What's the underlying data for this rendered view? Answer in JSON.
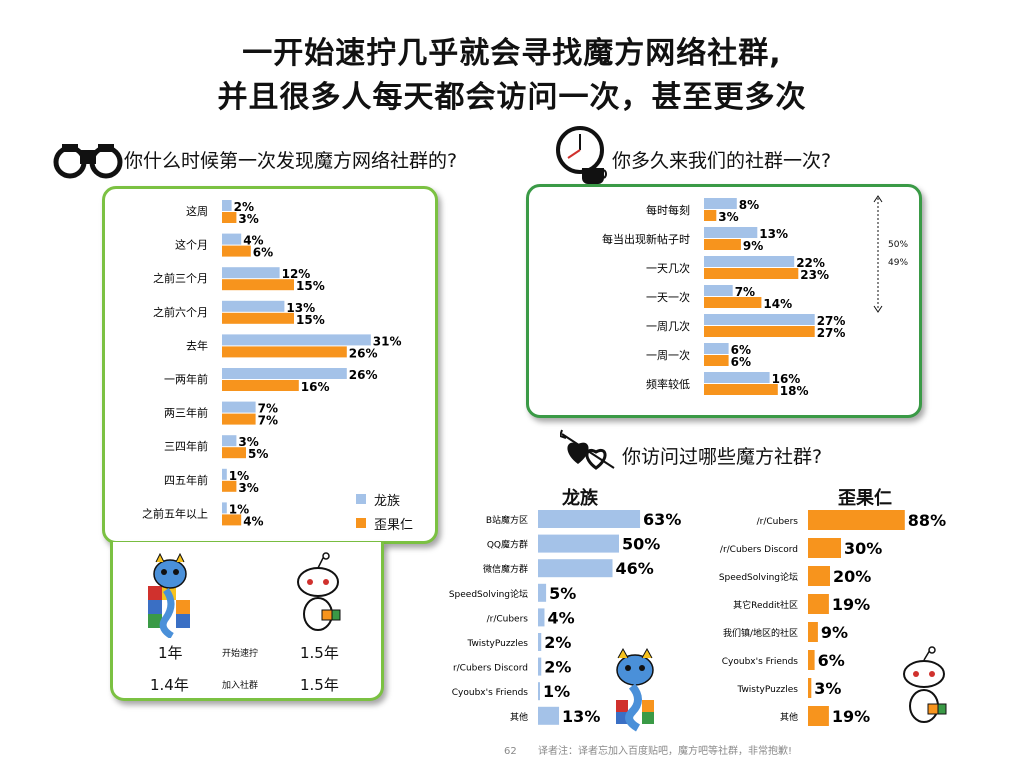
{
  "title_line1": "一开始速拧几乎就会寻找魔方网络社群,",
  "title_line2": "并且很多人每天都会访问一次，甚至更多次",
  "q1": "你什么时候第一次发现魔方网络社群的?",
  "q2": "你多久来我们的社群一次?",
  "q3": "你访问过哪些魔方社群?",
  "colors": {
    "blue": "#a4c2e8",
    "orange": "#f7941d",
    "panel_green": "#7bc142",
    "panel_dark_green": "#3a9a46"
  },
  "legend": {
    "series1": "龙族",
    "series2": "歪果仁"
  },
  "chart_data": [
    {
      "type": "bar",
      "orientation": "horizontal",
      "categories": [
        "这周",
        "这个月",
        "之前三个月",
        "之前六个月",
        "去年",
        "一两年前",
        "两三年前",
        "三四年前",
        "四五年前",
        "之前五年以上"
      ],
      "series": [
        {
          "name": "龙族",
          "values": [
            2,
            4,
            12,
            13,
            31,
            26,
            7,
            3,
            1,
            1
          ],
          "labels": [
            "2%",
            "4%",
            "12%",
            "13%",
            "31%",
            "26%",
            "7%",
            "3%",
            "1%",
            "1%"
          ]
        },
        {
          "name": "歪果仁",
          "values": [
            3,
            6,
            15,
            15,
            26,
            16,
            7,
            5,
            3,
            4
          ],
          "labels": [
            "3%",
            "6%",
            "15%",
            "15%",
            "26%",
            "16%",
            "7%",
            "5%",
            "3%",
            "4%"
          ]
        }
      ],
      "legend_position": "bottom-right"
    },
    {
      "type": "bar",
      "orientation": "horizontal",
      "categories": [
        "每时每刻",
        "每当出现新帖子时",
        "一天几次",
        "一天一次",
        "一周几次",
        "一周一次",
        "频率较低"
      ],
      "series": [
        {
          "values": [
            8,
            13,
            22,
            7,
            27,
            6,
            16
          ],
          "labels": [
            "8%",
            "13%",
            "22%",
            "7%",
            "27%",
            "6%",
            "16%"
          ]
        },
        {
          "values": [
            3,
            9,
            23,
            14,
            27,
            6,
            18
          ],
          "labels": [
            "3%",
            "9%",
            "23%",
            "14%",
            "27%",
            "6%",
            "18%"
          ]
        }
      ],
      "annotation": {
        "line1": "50%",
        "line2": "49%"
      }
    },
    {
      "type": "bar",
      "orientation": "horizontal",
      "title": "龙族",
      "categories": [
        "B站魔方区",
        "QQ魔方群",
        "微信魔方群",
        "SpeedSolving论坛",
        "/r/Cubers",
        "TwistyPuzzles",
        "r/Cubers Discord",
        "Cyoubx's Friends",
        "其他"
      ],
      "values": [
        63,
        50,
        46,
        5,
        4,
        2,
        2,
        1,
        13
      ],
      "labels": [
        "63%",
        "50%",
        "46%",
        "5%",
        "4%",
        "2%",
        "2%",
        "1%",
        "13%"
      ]
    },
    {
      "type": "bar",
      "orientation": "horizontal",
      "title": "歪果仁",
      "categories": [
        "/r/Cubers",
        "/r/Cubers Discord",
        "SpeedSolving论坛",
        "其它Reddit社区",
        "我们镇/地区的社区",
        "Cyoubx's Friends",
        "TwistyPuzzles",
        "其他"
      ],
      "values": [
        88,
        30,
        20,
        19,
        9,
        6,
        3,
        19
      ],
      "labels": [
        "88%",
        "30%",
        "20%",
        "19%",
        "9%",
        "6%",
        "3%",
        "19%"
      ]
    }
  ],
  "stats": {
    "row1": {
      "left": "1年",
      "mid": "开始速拧",
      "right": "1.5年"
    },
    "row2": {
      "left": "1.4年",
      "mid": "加入社群",
      "right": "1.5年"
    }
  },
  "page_number": "62",
  "footnote": "译者注：译者忘加入百度贴吧，魔方吧等社群，非常抱歉!"
}
